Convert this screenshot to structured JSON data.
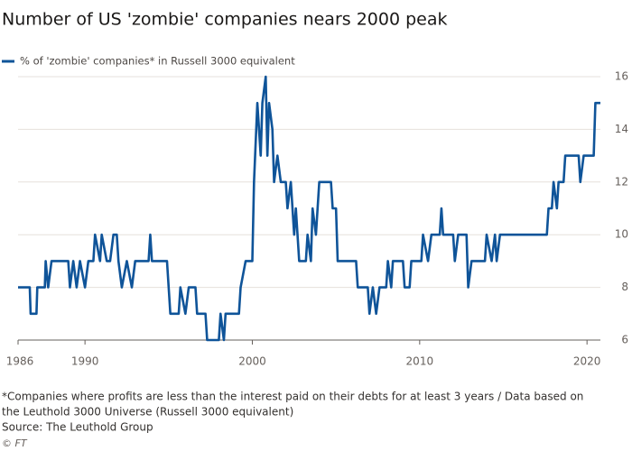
{
  "chart_data": {
    "type": "line",
    "title": "Number of US 'zombie' companies nears 2000 peak",
    "note_lines": [
      "*Companies where profits are less than the interest paid on their debts for at least 3 years / Data based on",
      "the Leuthold 3000 Universe (Russell 3000 equivalent)"
    ],
    "source": "Source: The Leuthold Group",
    "credit": "© FT",
    "grid": true,
    "xlim": [
      1986,
      2020.8
    ],
    "xticks": [
      1986,
      1990,
      2000,
      2010,
      2020
    ],
    "ylim": [
      6,
      16
    ],
    "yticks": [
      6,
      8,
      10,
      12,
      14,
      16
    ],
    "x": [
      1986.0,
      1986.7,
      1986.75,
      1987.1,
      1987.15,
      1987.6,
      1987.65,
      1987.8,
      1988.0,
      1989.0,
      1989.1,
      1989.3,
      1989.5,
      1989.7,
      1990.0,
      1990.2,
      1990.5,
      1990.6,
      1990.9,
      1991.0,
      1991.3,
      1991.5,
      1991.7,
      1991.9,
      1992.0,
      1992.2,
      1992.5,
      1992.8,
      1993.0,
      1993.8,
      1993.9,
      1994.0,
      1994.9,
      1995.0,
      1995.1,
      1995.6,
      1995.7,
      1996.0,
      1996.2,
      1996.6,
      1996.7,
      1997.2,
      1997.3,
      1998.0,
      1998.1,
      1998.3,
      1998.4,
      1999.2,
      1999.3,
      1999.6,
      2000.0,
      2000.1,
      2000.3,
      2000.5,
      2000.6,
      2000.8,
      2000.9,
      2001.0,
      2001.2,
      2001.3,
      2001.5,
      2001.7,
      2002.0,
      2002.1,
      2002.3,
      2002.5,
      2002.6,
      2002.8,
      2003.2,
      2003.3,
      2003.5,
      2003.6,
      2003.8,
      2004.0,
      2004.7,
      2004.8,
      2005.0,
      2005.1,
      2006.2,
      2006.3,
      2006.9,
      2007.0,
      2007.2,
      2007.4,
      2007.6,
      2008.0,
      2008.1,
      2008.3,
      2008.4,
      2009.0,
      2009.1,
      2009.4,
      2009.5,
      2010.1,
      2010.2,
      2010.5,
      2010.7,
      2011.2,
      2011.3,
      2011.4,
      2012.0,
      2012.1,
      2012.3,
      2012.8,
      2012.9,
      2013.1,
      2013.9,
      2014.0,
      2014.3,
      2014.5,
      2014.6,
      2014.8,
      2016.0,
      2017.6,
      2017.7,
      2017.9,
      2018.0,
      2018.2,
      2018.3,
      2018.6,
      2018.7,
      2019.5,
      2019.6,
      2019.8,
      2020.4,
      2020.5,
      2020.8
    ],
    "series": [
      {
        "name": "% of 'zombie' companies* in Russell 3000 equivalent",
        "color": "#0f5499",
        "values": [
          8,
          8,
          7,
          7,
          8,
          8,
          9,
          8,
          9,
          9,
          8,
          9,
          8,
          9,
          8,
          9,
          9,
          10,
          9,
          10,
          9,
          9,
          10,
          10,
          9,
          8,
          9,
          8,
          9,
          9,
          10,
          9,
          9,
          8,
          7,
          7,
          8,
          7,
          8,
          8,
          7,
          7,
          6,
          6,
          7,
          6,
          7,
          7,
          8,
          9,
          9,
          12,
          15,
          13,
          15,
          16,
          13,
          15,
          14,
          12,
          13,
          12,
          12,
          11,
          12,
          10,
          11,
          9,
          9,
          10,
          9,
          11,
          10,
          12,
          12,
          11,
          11,
          9,
          9,
          8,
          8,
          7,
          8,
          7,
          8,
          8,
          9,
          8,
          9,
          9,
          8,
          8,
          9,
          9,
          10,
          9,
          10,
          10,
          11,
          10,
          10,
          9,
          10,
          10,
          8,
          9,
          9,
          10,
          9,
          10,
          9,
          10,
          10,
          10,
          11,
          11,
          12,
          11,
          12,
          12,
          13,
          13,
          12,
          13,
          13,
          15,
          15
        ]
      }
    ]
  }
}
